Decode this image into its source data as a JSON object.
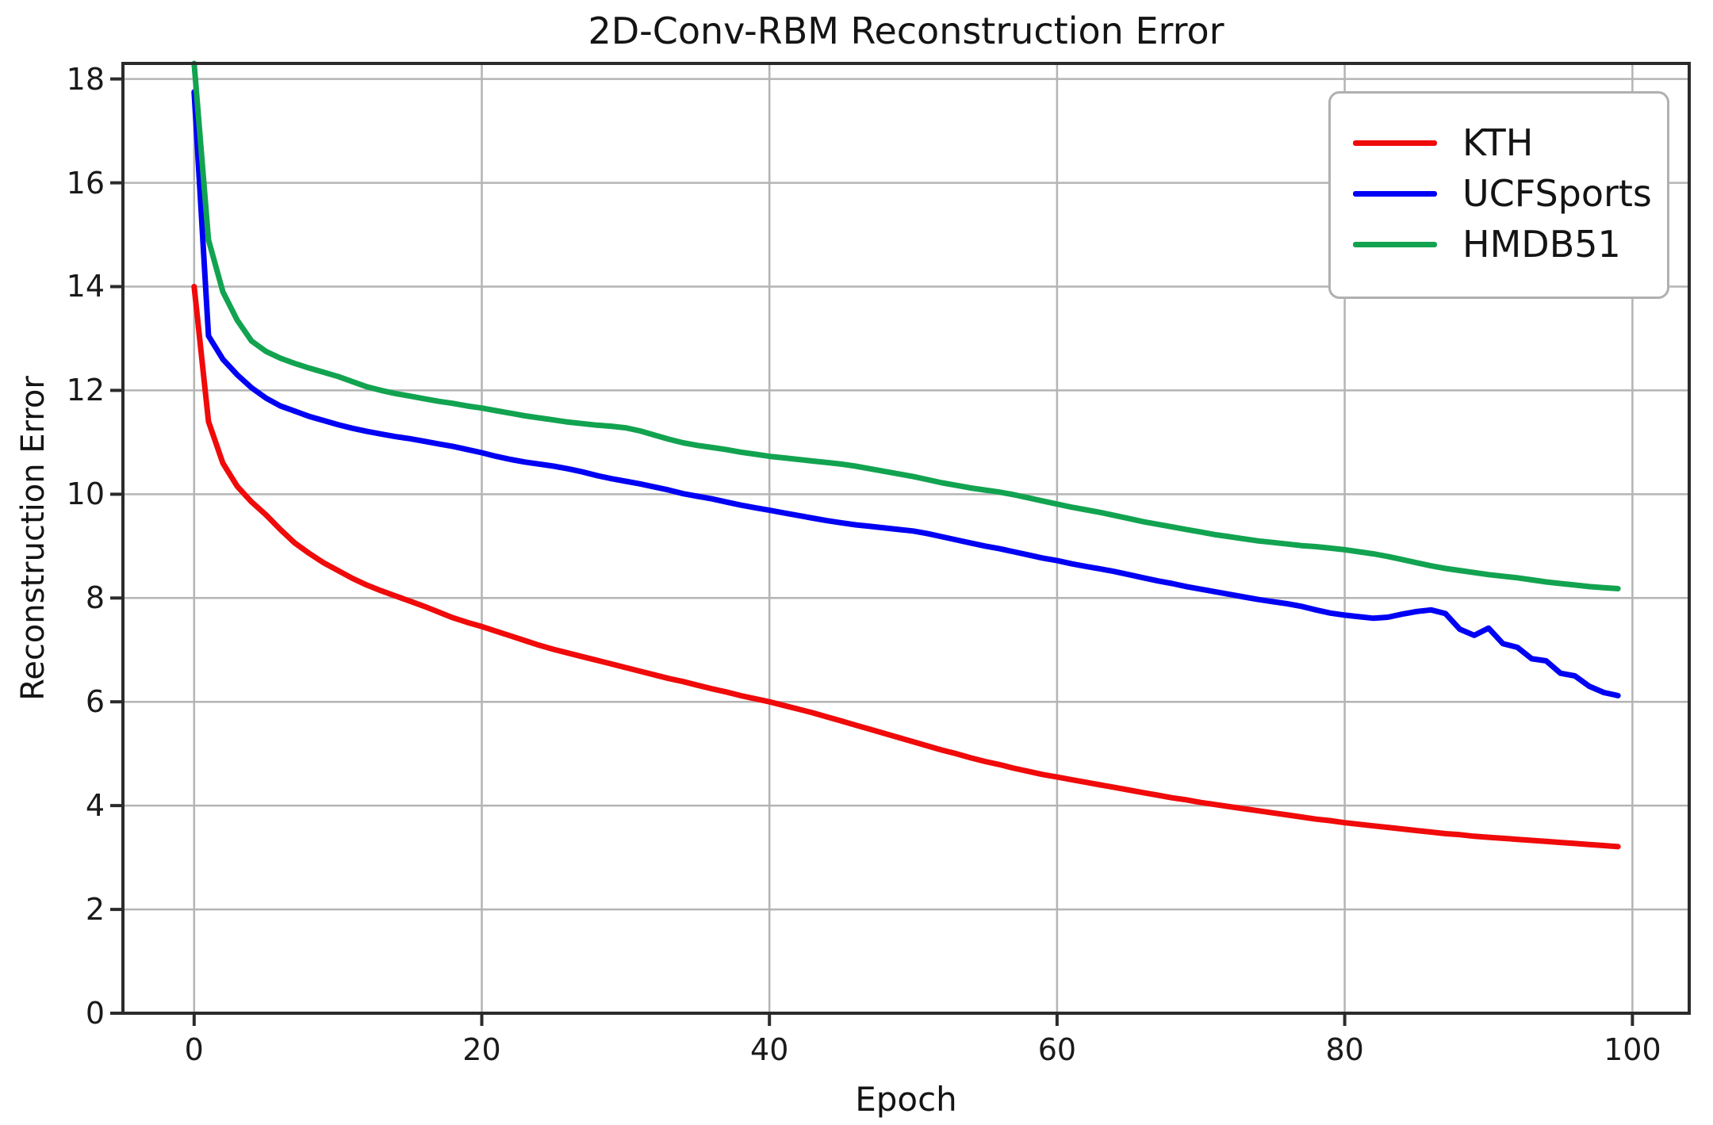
{
  "chart_data": {
    "type": "line",
    "title": "2D-Conv-RBM Reconstruction Error",
    "xlabel": "Epoch",
    "ylabel": "Reconstruction Error",
    "xlim": [
      -4.95,
      103.95
    ],
    "ylim": [
      0,
      18.3
    ],
    "x_ticks": [
      0,
      20,
      40,
      60,
      80,
      100
    ],
    "y_ticks": [
      0,
      2,
      4,
      6,
      8,
      10,
      12,
      14,
      16,
      18
    ],
    "grid": true,
    "legend_position": "upper right",
    "colors": {
      "grid": "#b4b4b4",
      "spine": "#2b2b2b",
      "tick": "#2b2b2b",
      "background": "#ffffff"
    },
    "x": [
      0,
      1,
      2,
      3,
      4,
      5,
      6,
      7,
      8,
      9,
      10,
      11,
      12,
      13,
      14,
      15,
      16,
      17,
      18,
      19,
      20,
      21,
      22,
      23,
      24,
      25,
      26,
      27,
      28,
      29,
      30,
      31,
      32,
      33,
      34,
      35,
      36,
      37,
      38,
      39,
      40,
      41,
      42,
      43,
      44,
      45,
      46,
      47,
      48,
      49,
      50,
      51,
      52,
      53,
      54,
      55,
      56,
      57,
      58,
      59,
      60,
      61,
      62,
      63,
      64,
      65,
      66,
      67,
      68,
      69,
      70,
      71,
      72,
      73,
      74,
      75,
      76,
      77,
      78,
      79,
      80,
      81,
      82,
      83,
      84,
      85,
      86,
      87,
      88,
      89,
      90,
      91,
      92,
      93,
      94,
      95,
      96,
      97,
      98,
      99
    ],
    "series": [
      {
        "name": "KTH",
        "color": "#f00a0a",
        "values": [
          14.0,
          11.4,
          10.6,
          10.15,
          9.85,
          9.6,
          9.32,
          9.06,
          8.86,
          8.68,
          8.53,
          8.38,
          8.25,
          8.14,
          8.04,
          7.94,
          7.84,
          7.73,
          7.62,
          7.53,
          7.45,
          7.36,
          7.27,
          7.18,
          7.09,
          7.01,
          6.94,
          6.87,
          6.8,
          6.73,
          6.66,
          6.59,
          6.52,
          6.45,
          6.39,
          6.32,
          6.25,
          6.19,
          6.12,
          6.06,
          6.0,
          5.93,
          5.86,
          5.79,
          5.71,
          5.63,
          5.55,
          5.47,
          5.39,
          5.31,
          5.23,
          5.15,
          5.07,
          5.0,
          4.92,
          4.85,
          4.79,
          4.72,
          4.66,
          4.6,
          4.55,
          4.5,
          4.45,
          4.4,
          4.35,
          4.3,
          4.25,
          4.2,
          4.15,
          4.11,
          4.06,
          4.02,
          3.98,
          3.94,
          3.9,
          3.86,
          3.82,
          3.78,
          3.74,
          3.71,
          3.67,
          3.64,
          3.61,
          3.58,
          3.55,
          3.52,
          3.49,
          3.46,
          3.44,
          3.41,
          3.39,
          3.37,
          3.35,
          3.33,
          3.31,
          3.29,
          3.27,
          3.25,
          3.23,
          3.21
        ]
      },
      {
        "name": "UCFSports",
        "color": "#0000f5",
        "values": [
          17.75,
          13.05,
          12.6,
          12.3,
          12.05,
          11.85,
          11.7,
          11.6,
          11.5,
          11.42,
          11.34,
          11.27,
          11.21,
          11.16,
          11.11,
          11.07,
          11.02,
          10.97,
          10.92,
          10.86,
          10.8,
          10.73,
          10.67,
          10.62,
          10.58,
          10.54,
          10.49,
          10.43,
          10.36,
          10.3,
          10.25,
          10.2,
          10.14,
          10.08,
          10.01,
          9.96,
          9.91,
          9.85,
          9.79,
          9.74,
          9.69,
          9.64,
          9.59,
          9.54,
          9.49,
          9.45,
          9.41,
          9.38,
          9.35,
          9.32,
          9.29,
          9.24,
          9.18,
          9.12,
          9.06,
          9.0,
          8.95,
          8.89,
          8.83,
          8.77,
          8.72,
          8.66,
          8.61,
          8.56,
          8.51,
          8.45,
          8.39,
          8.33,
          8.28,
          8.22,
          8.17,
          8.12,
          8.07,
          8.02,
          7.97,
          7.93,
          7.89,
          7.84,
          7.77,
          7.71,
          7.67,
          7.64,
          7.61,
          7.63,
          7.69,
          7.74,
          7.77,
          7.7,
          7.4,
          7.28,
          7.42,
          7.12,
          7.05,
          6.83,
          6.79,
          6.55,
          6.5,
          6.3,
          6.18,
          6.12
        ]
      },
      {
        "name": "HMDB51",
        "color": "#12a350",
        "values": [
          18.3,
          14.9,
          13.9,
          13.35,
          12.95,
          12.75,
          12.62,
          12.52,
          12.43,
          12.35,
          12.27,
          12.17,
          12.07,
          12.0,
          11.94,
          11.89,
          11.84,
          11.79,
          11.75,
          11.7,
          11.66,
          11.61,
          11.56,
          11.51,
          11.47,
          11.43,
          11.39,
          11.36,
          11.33,
          11.31,
          11.28,
          11.22,
          11.14,
          11.06,
          10.99,
          10.94,
          10.9,
          10.86,
          10.81,
          10.77,
          10.73,
          10.7,
          10.67,
          10.64,
          10.61,
          10.58,
          10.54,
          10.49,
          10.44,
          10.39,
          10.34,
          10.28,
          10.22,
          10.17,
          10.12,
          10.08,
          10.04,
          9.99,
          9.93,
          9.87,
          9.81,
          9.75,
          9.7,
          9.65,
          9.59,
          9.53,
          9.47,
          9.42,
          9.37,
          9.32,
          9.27,
          9.22,
          9.18,
          9.14,
          9.1,
          9.07,
          9.04,
          9.01,
          8.99,
          8.96,
          8.93,
          8.89,
          8.85,
          8.8,
          8.74,
          8.68,
          8.62,
          8.57,
          8.53,
          8.49,
          8.45,
          8.42,
          8.39,
          8.35,
          8.31,
          8.28,
          8.25,
          8.22,
          8.2,
          8.18
        ]
      }
    ]
  }
}
